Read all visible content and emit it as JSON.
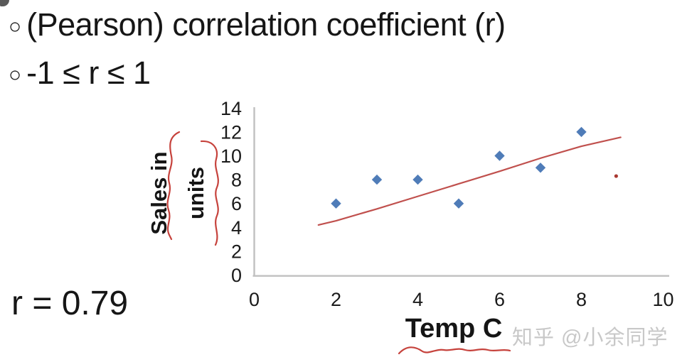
{
  "page": {
    "bullet_char": "○",
    "bullets": [
      "(Pearson) correlation coefficient (r)",
      "-1 ≤ r ≤ 1"
    ],
    "r_label": "r = 0.79",
    "watermark": "知乎 @小余同学"
  },
  "chart_data": {
    "type": "scatter",
    "title": "",
    "xlabel": "Temp C",
    "ylabel_lines": [
      "Sales in",
      "units"
    ],
    "x": [
      2,
      3,
      4,
      5,
      6,
      7,
      8
    ],
    "y": [
      6,
      8,
      8,
      6,
      10,
      9,
      12
    ],
    "xlim": [
      0,
      10
    ],
    "ylim": [
      0,
      14
    ],
    "x_ticks": [
      0,
      2,
      4,
      6,
      8,
      10
    ],
    "y_ticks": [
      0,
      2,
      4,
      6,
      8,
      10,
      12,
      14
    ],
    "grid": false,
    "legend": false,
    "marker": "diamond",
    "marker_color": "#4f7cb8",
    "axis_color": "#c0c0c0",
    "tick_color": "#1a1a1a",
    "tick_font_px": 27,
    "trendline": {
      "color": "#c0504d",
      "points": [
        [
          1.57,
          4.2
        ],
        [
          2.0,
          4.55
        ],
        [
          3.0,
          5.55
        ],
        [
          4.0,
          6.6
        ],
        [
          5.0,
          7.65
        ],
        [
          6.0,
          8.7
        ],
        [
          7.0,
          9.8
        ],
        [
          8.0,
          10.8
        ],
        [
          8.96,
          11.55
        ]
      ]
    },
    "stray_dot": {
      "x": 8.85,
      "y": 8.3,
      "color": "#a93830"
    },
    "annotation_color": "#c6423c"
  }
}
